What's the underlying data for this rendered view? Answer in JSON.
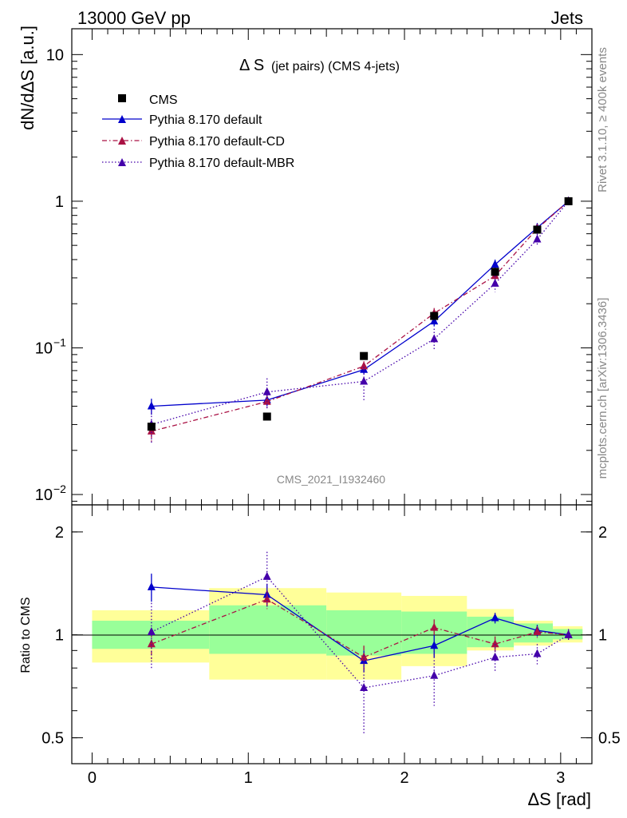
{
  "header": {
    "left": "13000 GeV pp",
    "right": "Jets"
  },
  "side_labels": {
    "rivet": "Rivet 3.1.10, ≥ 400k events",
    "mcplots": "mcplots.cern.ch [arXiv:1306.3436]"
  },
  "watermark": "CMS_2021_I1932460",
  "chart_data": [
    {
      "type": "line",
      "title_main": "Δ S",
      "title_sub": "(jet pairs) (CMS 4-jets)",
      "ylabel": "dN/dΔS [a.u.]",
      "yscale": "log",
      "xlim": [
        -0.13,
        3.2
      ],
      "ylim": [
        0.0085,
        15
      ],
      "y_ticks": [
        {
          "value": 10,
          "label": "10"
        },
        {
          "value": 1,
          "label": "1"
        },
        {
          "value": 0.1,
          "label": "10",
          "exp": "−1"
        },
        {
          "value": 0.01,
          "label": "10",
          "exp": "−2"
        }
      ],
      "legend_position": "top-left",
      "data_series": {
        "name": "CMS",
        "x": [
          0.38,
          1.12,
          1.74,
          2.19,
          2.58,
          2.85,
          3.05
        ],
        "y": [
          0.029,
          0.034,
          0.088,
          0.165,
          0.33,
          0.64,
          1.0
        ]
      },
      "series": [
        {
          "name": "Pythia 8.170 default",
          "color": "#0000cc",
          "dash": "solid",
          "x": [
            0.38,
            1.12,
            1.74,
            2.19,
            2.58,
            2.85,
            3.05
          ],
          "y": [
            0.04,
            0.044,
            0.071,
            0.152,
            0.37,
            0.66,
            1.0
          ],
          "err": [
            0.005,
            0.004,
            0.005,
            0.012,
            0.03,
            0.05,
            0.06
          ]
        },
        {
          "name": "Pythia 8.170 default-CD",
          "color": "#aa1144",
          "dash": "dashdot",
          "x": [
            0.38,
            1.12,
            1.74,
            2.19,
            2.58,
            2.85,
            3.05
          ],
          "y": [
            0.027,
            0.043,
            0.075,
            0.172,
            0.31,
            0.65,
            1.0
          ],
          "err": [
            0.004,
            0.004,
            0.006,
            0.015,
            0.025,
            0.05,
            0.06
          ]
        },
        {
          "name": "Pythia 8.170 default-MBR",
          "color": "#4400aa",
          "dash": "dotted",
          "x": [
            0.38,
            1.12,
            1.74,
            2.19,
            2.58,
            2.85,
            3.05
          ],
          "y": [
            0.03,
            0.05,
            0.059,
            0.115,
            0.275,
            0.55,
            1.0
          ],
          "err": [
            0.008,
            0.012,
            0.015,
            0.02,
            0.035,
            0.05,
            0.06
          ]
        }
      ]
    },
    {
      "type": "line",
      "ylabel": "Ratio to CMS",
      "xlabel": "ΔS [rad]",
      "yscale": "log",
      "xlim": [
        -0.13,
        3.2
      ],
      "ylim": [
        0.42,
        2.4
      ],
      "x_ticks": [
        0,
        1,
        2,
        3
      ],
      "y_ticks": [
        {
          "value": 2,
          "label": "2"
        },
        {
          "value": 1,
          "label": "1"
        },
        {
          "value": 0.5,
          "label": "0.5"
        }
      ],
      "bands": [
        {
          "x0": 0.0,
          "x1": 0.75,
          "inner": [
            0.91,
            1.1
          ],
          "outer": [
            0.83,
            1.18
          ]
        },
        {
          "x0": 0.75,
          "x1": 1.5,
          "inner": [
            0.88,
            1.22
          ],
          "outer": [
            0.74,
            1.37
          ]
        },
        {
          "x0": 1.5,
          "x1": 1.98,
          "inner": [
            0.87,
            1.18
          ],
          "outer": [
            0.74,
            1.33
          ]
        },
        {
          "x0": 1.98,
          "x1": 2.4,
          "inner": [
            0.88,
            1.17
          ],
          "outer": [
            0.81,
            1.3
          ]
        },
        {
          "x0": 2.4,
          "x1": 2.7,
          "inner": [
            0.92,
            1.13
          ],
          "outer": [
            0.9,
            1.19
          ]
        },
        {
          "x0": 2.7,
          "x1": 2.95,
          "inner": [
            0.95,
            1.08
          ],
          "outer": [
            0.93,
            1.1
          ]
        },
        {
          "x0": 2.95,
          "x1": 3.14,
          "inner": [
            0.97,
            1.04
          ],
          "outer": [
            0.95,
            1.06
          ]
        }
      ],
      "series": [
        {
          "name": "Pythia 8.170 default",
          "color": "#0000cc",
          "dash": "solid",
          "x": [
            0.38,
            1.12,
            1.74,
            2.19,
            2.58,
            2.85,
            3.05
          ],
          "y": [
            1.38,
            1.31,
            0.84,
            0.93,
            1.12,
            1.03,
            1.0
          ],
          "err": [
            0.13,
            0.1,
            0.06,
            0.07,
            0.04,
            0.04,
            0.03
          ]
        },
        {
          "name": "Pythia 8.170 default-CD",
          "color": "#aa1144",
          "dash": "dashdot",
          "x": [
            0.38,
            1.12,
            1.74,
            2.19,
            2.58,
            2.85,
            3.05
          ],
          "y": [
            0.94,
            1.27,
            0.86,
            1.05,
            0.94,
            1.02,
            1.0
          ],
          "err": [
            0.1,
            0.08,
            0.07,
            0.06,
            0.05,
            0.04,
            0.03
          ]
        },
        {
          "name": "Pythia 8.170 default-MBR",
          "color": "#4400aa",
          "dash": "dotted",
          "x": [
            0.38,
            1.12,
            1.74,
            2.19,
            2.58,
            2.85,
            3.05
          ],
          "y": [
            1.02,
            1.48,
            0.7,
            0.76,
            0.86,
            0.88,
            1.0
          ],
          "err": [
            0.22,
            0.27,
            0.19,
            0.14,
            0.08,
            0.06,
            0.04
          ]
        }
      ]
    }
  ]
}
